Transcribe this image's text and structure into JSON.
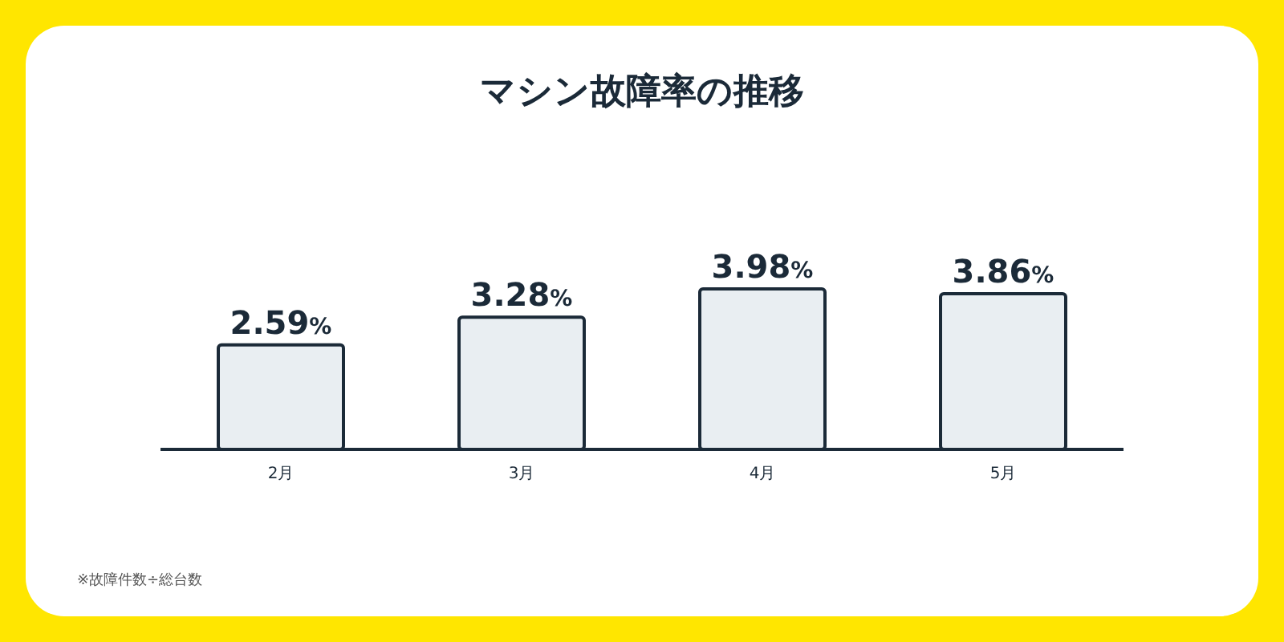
{
  "chart_data": {
    "type": "bar",
    "title": "マシン故障率の推移",
    "categories": [
      "2月",
      "3月",
      "4月",
      "5月"
    ],
    "values": [
      2.59,
      3.28,
      3.98,
      3.86
    ],
    "value_labels": [
      "2.59%",
      "3.28%",
      "3.98%",
      "3.86%"
    ],
    "color": "#e9eef2",
    "annotations": [
      "※故障件数÷総台数"
    ]
  }
}
